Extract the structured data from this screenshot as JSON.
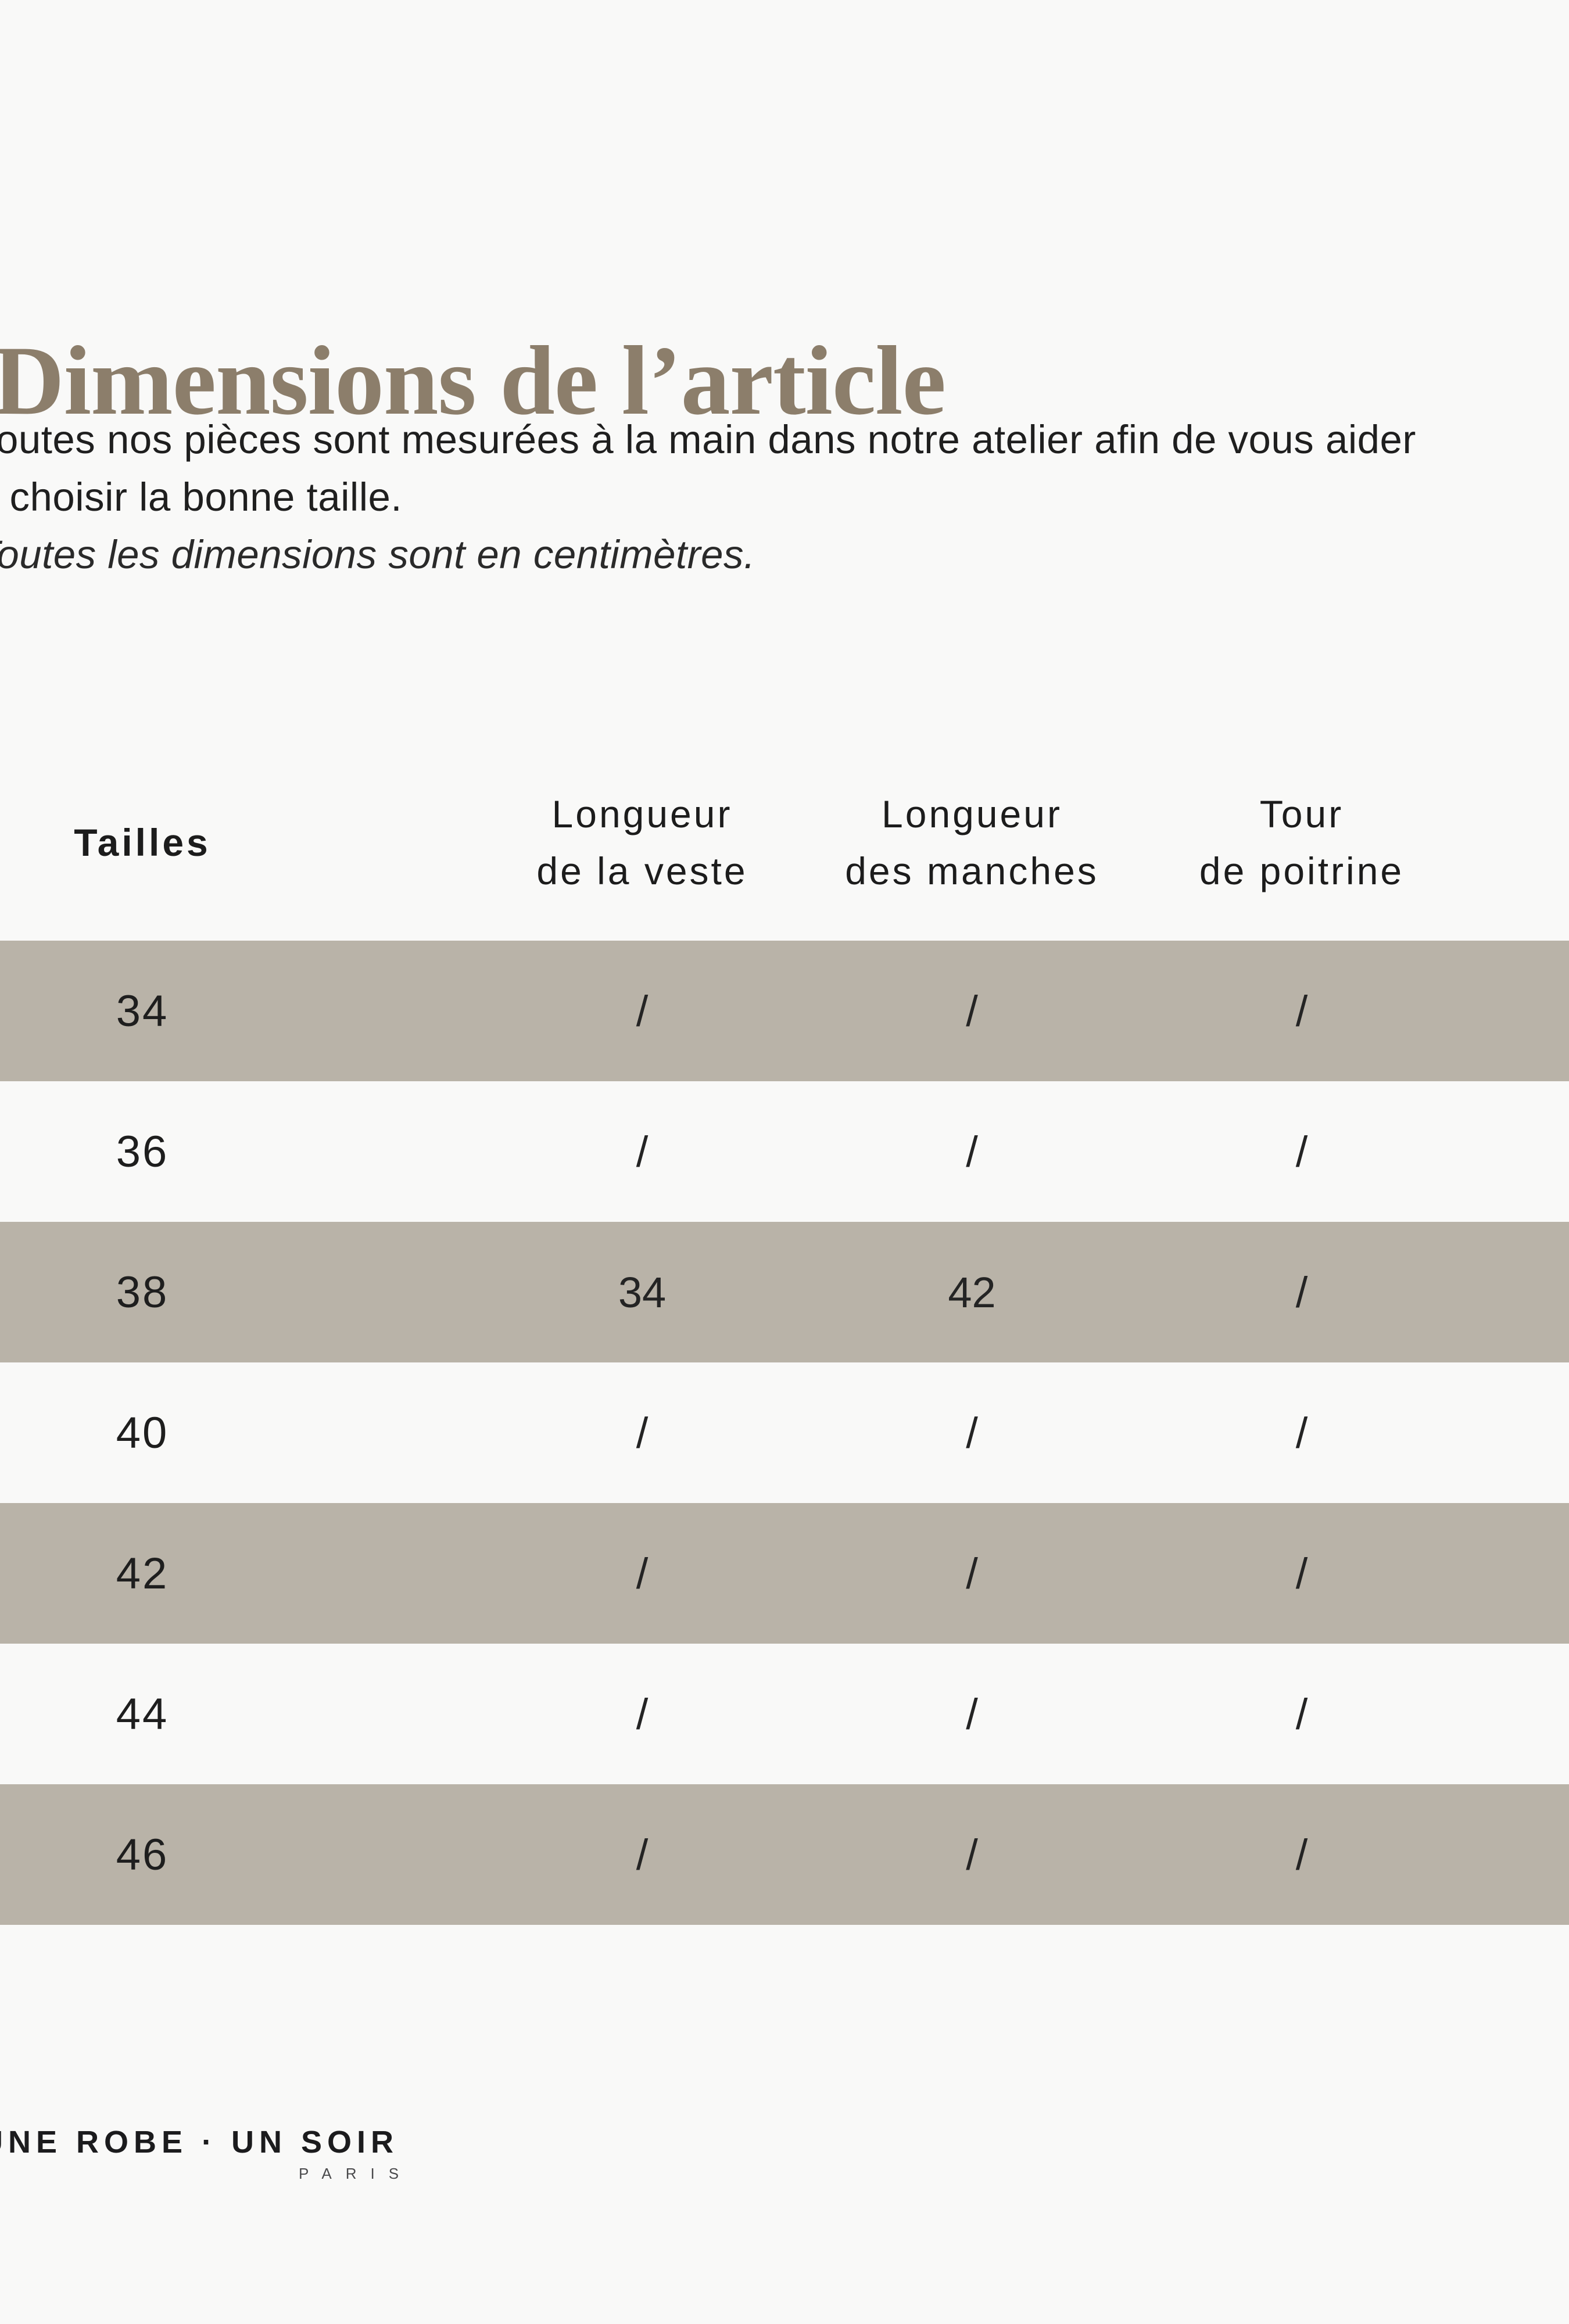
{
  "colors": {
    "background": "#f9f9f8",
    "title": "#8c7e6b",
    "band_taupe": "#b9b3a8",
    "text": "#1f1f1f"
  },
  "title": {
    "text": "Dimensions de l’article"
  },
  "intro": {
    "line1": "Toutes nos pièces sont mesurées à la main dans notre atelier afin de vous aider",
    "line2": "à choisir la bonne taille.",
    "note": "Toutes les dimensions sont en centimètres."
  },
  "table": {
    "headers": {
      "sizes": "Tailles",
      "col2": {
        "line1": "Longueur",
        "line2": "de la veste"
      },
      "col3": {
        "line1": "Longueur",
        "line2": "des manches"
      },
      "col4": {
        "line1": "Tour",
        "line2": "de poitrine"
      }
    },
    "rows": [
      {
        "size": "34",
        "values": [
          "/",
          "/",
          "/"
        ]
      },
      {
        "size": "36",
        "values": [
          "/",
          "/",
          "/"
        ]
      },
      {
        "size": "38",
        "values": [
          "34",
          "42",
          "/"
        ]
      },
      {
        "size": "40",
        "values": [
          "/",
          "/",
          "/"
        ]
      },
      {
        "size": "42",
        "values": [
          "/",
          "/",
          "/"
        ]
      },
      {
        "size": "44",
        "values": [
          "/",
          "/",
          "/"
        ]
      },
      {
        "size": "46",
        "values": [
          "/",
          "/",
          "/"
        ]
      }
    ]
  },
  "footer": {
    "brand": "UNE ROBE · UN SOIR",
    "city": "PARIS"
  }
}
